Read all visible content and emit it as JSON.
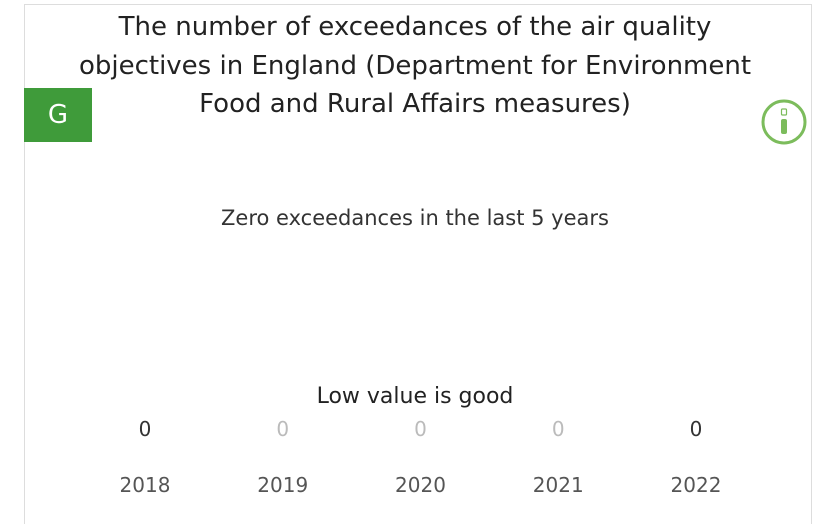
{
  "card": {
    "title_lines": [
      "The number of exceedances of the air quality",
      "objectives in England (Department for Environment",
      "Food and Rural Affairs measures)"
    ],
    "badge": "G",
    "message": "Zero exceedances in the last 5 years",
    "note": "Low value is good",
    "items": [
      {
        "year": "2018",
        "value": 0,
        "emphasis": true
      },
      {
        "year": "2019",
        "value": 0,
        "emphasis": false
      },
      {
        "year": "2020",
        "value": 0,
        "emphasis": false
      },
      {
        "year": "2021",
        "value": 0,
        "emphasis": false
      },
      {
        "year": "2022",
        "value": 0,
        "emphasis": true
      }
    ]
  }
}
